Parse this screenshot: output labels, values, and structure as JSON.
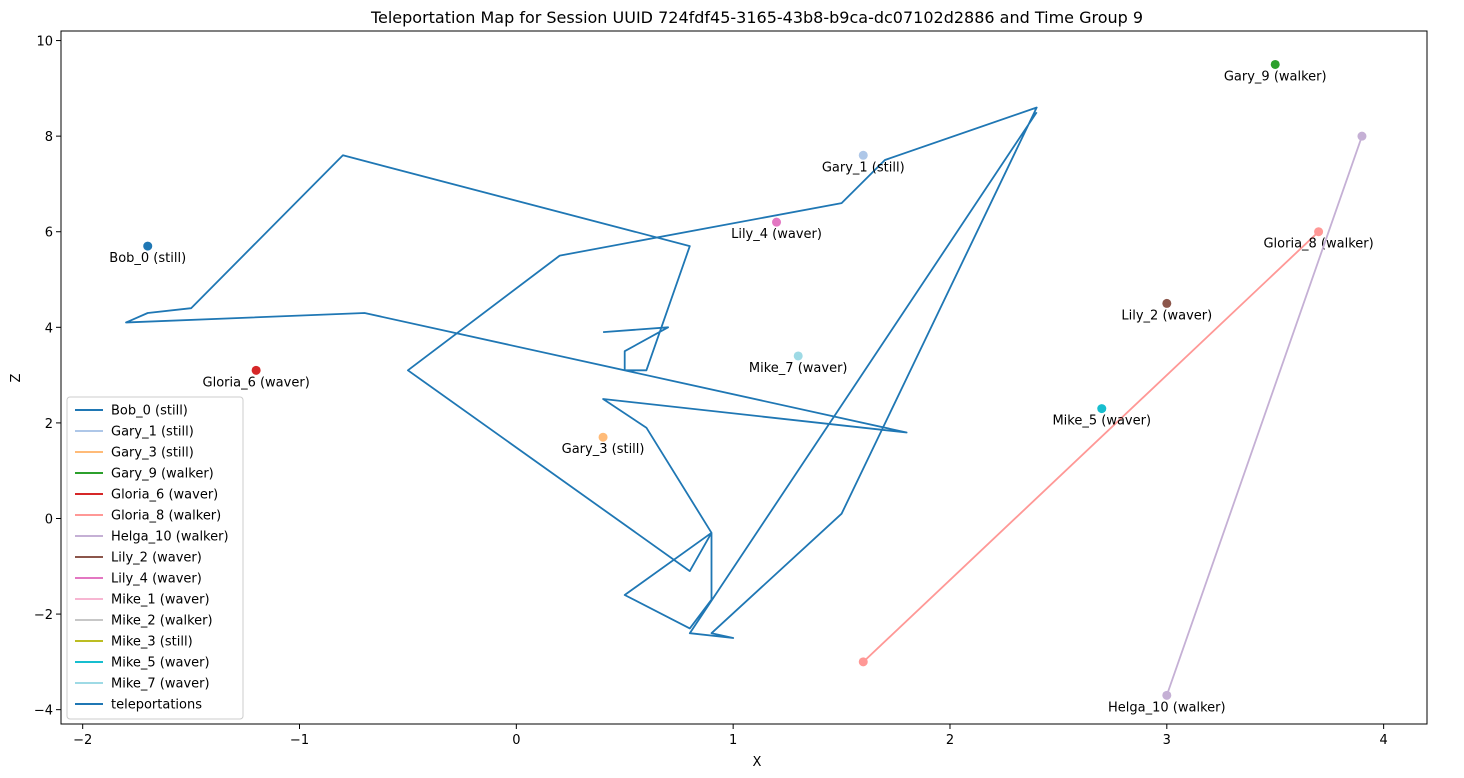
{
  "chart_data": {
    "type": "scatter",
    "title": "Teleportation Map for Session UUID 724fdf45-3165-43b8-b9ca-dc07102d2886 and Time Group 9",
    "xlabel": "X",
    "ylabel": "Z",
    "xlim": [
      -2.1,
      4.2
    ],
    "ylim": [
      -4.3,
      10.2
    ],
    "xticks": [
      -2,
      -1,
      0,
      1,
      2,
      3,
      4
    ],
    "yticks": [
      -4,
      -2,
      0,
      2,
      4,
      6,
      8,
      10
    ],
    "grid": false,
    "legend_position": "lower-left",
    "points": [
      {
        "name": "Bob_0 (still)",
        "x": -1.7,
        "y": 5.7,
        "color": "#1f77b4"
      },
      {
        "name": "Gary_1 (still)",
        "x": 1.6,
        "y": 7.6,
        "color": "#aec7e8"
      },
      {
        "name": "Gary_3 (still)",
        "x": 0.4,
        "y": 1.7,
        "color": "#ffbb78"
      },
      {
        "name": "Gary_9 (walker)",
        "x": 3.5,
        "y": 9.5,
        "color": "#2ca02c"
      },
      {
        "name": "Gloria_6 (waver)",
        "x": -1.2,
        "y": 3.1,
        "color": "#d62728"
      },
      {
        "name": "Lily_2 (waver)",
        "x": 3.0,
        "y": 4.5,
        "color": "#8c564b"
      },
      {
        "name": "Lily_4 (waver)",
        "x": 1.2,
        "y": 6.2,
        "color": "#e377c2"
      },
      {
        "name": "Mike_5 (waver)",
        "x": 2.7,
        "y": 2.3,
        "color": "#17becf"
      },
      {
        "name": "Mike_7 (waver)",
        "x": 1.3,
        "y": 3.4,
        "color": "#9edae5"
      }
    ],
    "walker_lines": [
      {
        "name": "Gloria_8 (walker)",
        "color": "#ff9896",
        "points": [
          [
            1.6,
            -3.0
          ],
          [
            3.7,
            6.0
          ]
        ],
        "label_at": 1
      },
      {
        "name": "Helga_10 (walker)",
        "color": "#c5b0d5",
        "points": [
          [
            3.0,
            -3.7
          ],
          [
            3.9,
            8.0
          ]
        ],
        "label_at": 0
      }
    ],
    "teleportations": {
      "name": "teleportations",
      "color": "#1f77b4",
      "path": [
        [
          2.4,
          8.5
        ],
        [
          0.8,
          -2.4
        ],
        [
          1.0,
          -2.5
        ],
        [
          0.9,
          -2.4
        ],
        [
          1.5,
          0.1
        ],
        [
          2.4,
          8.6
        ],
        [
          1.7,
          7.5
        ],
        [
          1.5,
          6.6
        ],
        [
          0.2,
          5.5
        ],
        [
          -0.5,
          3.1
        ],
        [
          0.8,
          -1.1
        ],
        [
          0.9,
          -0.3
        ],
        [
          0.9,
          -1.7
        ],
        [
          0.8,
          -2.3
        ],
        [
          0.5,
          -1.6
        ],
        [
          0.9,
          -0.3
        ],
        [
          0.6,
          1.9
        ],
        [
          0.4,
          2.5
        ],
        [
          1.8,
          1.8
        ],
        [
          -0.7,
          4.3
        ],
        [
          -1.8,
          4.1
        ],
        [
          -1.7,
          4.3
        ],
        [
          -1.5,
          4.4
        ],
        [
          -0.8,
          7.6
        ],
        [
          0.8,
          5.7
        ],
        [
          0.6,
          3.1
        ],
        [
          0.5,
          3.1
        ],
        [
          0.5,
          3.5
        ],
        [
          0.7,
          4.0
        ],
        [
          0.4,
          3.9
        ]
      ]
    },
    "legend": [
      {
        "label": "Bob_0 (still)",
        "color": "#1f77b4"
      },
      {
        "label": "Gary_1 (still)",
        "color": "#aec7e8"
      },
      {
        "label": "Gary_3 (still)",
        "color": "#ffbb78"
      },
      {
        "label": "Gary_9 (walker)",
        "color": "#2ca02c"
      },
      {
        "label": "Gloria_6 (waver)",
        "color": "#d62728"
      },
      {
        "label": "Gloria_8 (walker)",
        "color": "#ff9896"
      },
      {
        "label": "Helga_10 (walker)",
        "color": "#c5b0d5"
      },
      {
        "label": "Lily_2 (waver)",
        "color": "#8c564b"
      },
      {
        "label": "Lily_4 (waver)",
        "color": "#e377c2"
      },
      {
        "label": "Mike_1 (waver)",
        "color": "#f7b6d2"
      },
      {
        "label": "Mike_2 (walker)",
        "color": "#c7c7c7"
      },
      {
        "label": "Mike_3 (still)",
        "color": "#bcbd22"
      },
      {
        "label": "Mike_5 (waver)",
        "color": "#17becf"
      },
      {
        "label": "Mike_7 (waver)",
        "color": "#9edae5"
      },
      {
        "label": "teleportations",
        "color": "#1f77b4"
      }
    ]
  }
}
